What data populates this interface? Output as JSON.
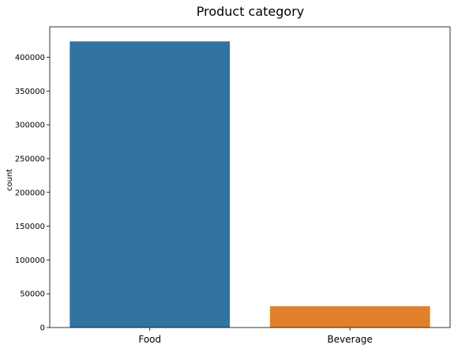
{
  "chart_data": {
    "type": "bar",
    "title": "Product category",
    "xlabel": "",
    "ylabel": "count",
    "categories": [
      "Food",
      "Beverage"
    ],
    "values": [
      423500,
      31500
    ],
    "colors": [
      "#3274a1",
      "#e1812c"
    ],
    "ylim": [
      0,
      445000
    ],
    "yticks": [
      0,
      50000,
      100000,
      150000,
      200000,
      250000,
      300000,
      350000,
      400000
    ],
    "ytick_labels": [
      "0",
      "50000",
      "100000",
      "150000",
      "200000",
      "250000",
      "300000",
      "350000",
      "400000"
    ],
    "grid": false,
    "legend": "none"
  }
}
